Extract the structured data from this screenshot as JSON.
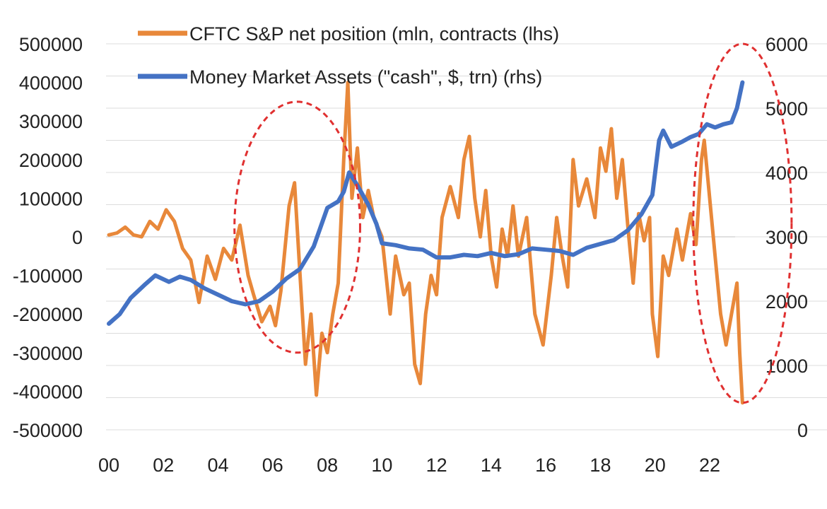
{
  "chart_data": {
    "type": "line",
    "title": "",
    "xlabel": "",
    "ylabel_left": "",
    "ylabel_right": "",
    "x_tick_labels": [
      "00",
      "02",
      "04",
      "06",
      "08",
      "10",
      "12",
      "14",
      "16",
      "18",
      "20",
      "22"
    ],
    "x_range": [
      2000,
      2023
    ],
    "y_left_ticks": [
      500000,
      400000,
      300000,
      200000,
      100000,
      0,
      -100000,
      -200000,
      -300000,
      -400000,
      -500000
    ],
    "y_left_range": [
      -500000,
      500000
    ],
    "y_right_ticks": [
      6000,
      5000,
      4000,
      3000,
      2000,
      1000,
      0
    ],
    "y_right_range": [
      0,
      6000
    ],
    "grid": true,
    "legend_position": "top-center",
    "series": [
      {
        "name": "CFTC S&P net position (mln, contracts (lhs)",
        "axis": "left",
        "color": "#E8883A",
        "points": [
          [
            2000.0,
            5000
          ],
          [
            2000.3,
            10000
          ],
          [
            2000.6,
            25000
          ],
          [
            2000.9,
            5000
          ],
          [
            2001.2,
            0
          ],
          [
            2001.5,
            40000
          ],
          [
            2001.8,
            20000
          ],
          [
            2002.1,
            70000
          ],
          [
            2002.4,
            40000
          ],
          [
            2002.7,
            -30000
          ],
          [
            2003.0,
            -60000
          ],
          [
            2003.3,
            -170000
          ],
          [
            2003.6,
            -50000
          ],
          [
            2003.9,
            -110000
          ],
          [
            2004.2,
            -30000
          ],
          [
            2004.5,
            -60000
          ],
          [
            2004.8,
            30000
          ],
          [
            2005.1,
            -100000
          ],
          [
            2005.3,
            -150000
          ],
          [
            2005.6,
            -220000
          ],
          [
            2005.9,
            -180000
          ],
          [
            2006.1,
            -230000
          ],
          [
            2006.3,
            -140000
          ],
          [
            2006.6,
            80000
          ],
          [
            2006.8,
            140000
          ],
          [
            2007.0,
            -100000
          ],
          [
            2007.2,
            -330000
          ],
          [
            2007.4,
            -200000
          ],
          [
            2007.6,
            -410000
          ],
          [
            2007.8,
            -250000
          ],
          [
            2008.0,
            -300000
          ],
          [
            2008.2,
            -200000
          ],
          [
            2008.4,
            -120000
          ],
          [
            2008.6,
            200000
          ],
          [
            2008.75,
            400000
          ],
          [
            2008.9,
            100000
          ],
          [
            2009.1,
            230000
          ],
          [
            2009.3,
            50000
          ],
          [
            2009.5,
            120000
          ],
          [
            2009.7,
            50000
          ],
          [
            2010.0,
            0
          ],
          [
            2010.3,
            -200000
          ],
          [
            2010.5,
            -50000
          ],
          [
            2010.8,
            -150000
          ],
          [
            2011.0,
            -120000
          ],
          [
            2011.2,
            -330000
          ],
          [
            2011.4,
            -380000
          ],
          [
            2011.6,
            -200000
          ],
          [
            2011.8,
            -100000
          ],
          [
            2012.0,
            -150000
          ],
          [
            2012.2,
            50000
          ],
          [
            2012.5,
            130000
          ],
          [
            2012.8,
            50000
          ],
          [
            2013.0,
            200000
          ],
          [
            2013.2,
            260000
          ],
          [
            2013.4,
            100000
          ],
          [
            2013.6,
            0
          ],
          [
            2013.8,
            120000
          ],
          [
            2014.0,
            -50000
          ],
          [
            2014.2,
            -130000
          ],
          [
            2014.4,
            20000
          ],
          [
            2014.6,
            -50000
          ],
          [
            2014.8,
            80000
          ],
          [
            2015.0,
            -50000
          ],
          [
            2015.3,
            50000
          ],
          [
            2015.6,
            -200000
          ],
          [
            2015.9,
            -280000
          ],
          [
            2016.2,
            -100000
          ],
          [
            2016.4,
            50000
          ],
          [
            2016.6,
            -50000
          ],
          [
            2016.8,
            -130000
          ],
          [
            2017.0,
            200000
          ],
          [
            2017.2,
            80000
          ],
          [
            2017.5,
            150000
          ],
          [
            2017.8,
            50000
          ],
          [
            2018.0,
            230000
          ],
          [
            2018.2,
            170000
          ],
          [
            2018.4,
            280000
          ],
          [
            2018.6,
            100000
          ],
          [
            2018.8,
            200000
          ],
          [
            2019.0,
            30000
          ],
          [
            2019.2,
            -120000
          ],
          [
            2019.4,
            60000
          ],
          [
            2019.6,
            -10000
          ],
          [
            2019.8,
            50000
          ],
          [
            2019.9,
            -200000
          ],
          [
            2020.1,
            -310000
          ],
          [
            2020.3,
            -50000
          ],
          [
            2020.5,
            -100000
          ],
          [
            2020.8,
            20000
          ],
          [
            2021.0,
            -60000
          ],
          [
            2021.3,
            60000
          ],
          [
            2021.5,
            -20000
          ],
          [
            2021.7,
            200000
          ],
          [
            2021.8,
            250000
          ],
          [
            2022.0,
            100000
          ],
          [
            2022.2,
            -50000
          ],
          [
            2022.4,
            -200000
          ],
          [
            2022.6,
            -280000
          ],
          [
            2022.8,
            -200000
          ],
          [
            2023.0,
            -120000
          ],
          [
            2023.1,
            -300000
          ],
          [
            2023.2,
            -430000
          ]
        ]
      },
      {
        "name": "Money Market Assets (\"cash\", $, trn) (rhs)",
        "axis": "right",
        "color": "#4472C4",
        "points": [
          [
            2000.0,
            1650
          ],
          [
            2000.4,
            1800
          ],
          [
            2000.8,
            2050
          ],
          [
            2001.3,
            2250
          ],
          [
            2001.7,
            2400
          ],
          [
            2002.2,
            2300
          ],
          [
            2002.6,
            2380
          ],
          [
            2003.0,
            2330
          ],
          [
            2003.5,
            2200
          ],
          [
            2004.0,
            2100
          ],
          [
            2004.5,
            2000
          ],
          [
            2005.0,
            1950
          ],
          [
            2005.5,
            2000
          ],
          [
            2006.0,
            2150
          ],
          [
            2006.5,
            2350
          ],
          [
            2007.0,
            2500
          ],
          [
            2007.5,
            2850
          ],
          [
            2008.0,
            3450
          ],
          [
            2008.4,
            3550
          ],
          [
            2008.6,
            3700
          ],
          [
            2008.8,
            4000
          ],
          [
            2009.1,
            3800
          ],
          [
            2009.5,
            3500
          ],
          [
            2009.8,
            3200
          ],
          [
            2010.0,
            2900
          ],
          [
            2010.5,
            2870
          ],
          [
            2011.0,
            2820
          ],
          [
            2011.5,
            2800
          ],
          [
            2012.0,
            2680
          ],
          [
            2012.5,
            2680
          ],
          [
            2013.0,
            2720
          ],
          [
            2013.5,
            2700
          ],
          [
            2014.0,
            2750
          ],
          [
            2014.5,
            2700
          ],
          [
            2015.0,
            2730
          ],
          [
            2015.5,
            2820
          ],
          [
            2016.0,
            2800
          ],
          [
            2016.5,
            2780
          ],
          [
            2017.0,
            2720
          ],
          [
            2017.5,
            2830
          ],
          [
            2018.0,
            2890
          ],
          [
            2018.5,
            2950
          ],
          [
            2019.0,
            3100
          ],
          [
            2019.5,
            3350
          ],
          [
            2019.9,
            3650
          ],
          [
            2020.15,
            4500
          ],
          [
            2020.3,
            4650
          ],
          [
            2020.6,
            4400
          ],
          [
            2021.0,
            4480
          ],
          [
            2021.3,
            4550
          ],
          [
            2021.6,
            4600
          ],
          [
            2021.9,
            4750
          ],
          [
            2022.2,
            4700
          ],
          [
            2022.5,
            4750
          ],
          [
            2022.8,
            4780
          ],
          [
            2023.0,
            5000
          ],
          [
            2023.2,
            5400
          ]
        ]
      }
    ],
    "annotations": [
      {
        "shape": "dashed-ellipse",
        "color": "#E03030",
        "x_range": [
          2004.6,
          2009.2
        ],
        "y_left_range": [
          -300000,
          350000
        ]
      },
      {
        "shape": "dashed-ellipse",
        "color": "#E03030",
        "x_range": [
          2021.4,
          2025.0
        ],
        "y_left_range": [
          -430000,
          500000
        ]
      }
    ]
  }
}
